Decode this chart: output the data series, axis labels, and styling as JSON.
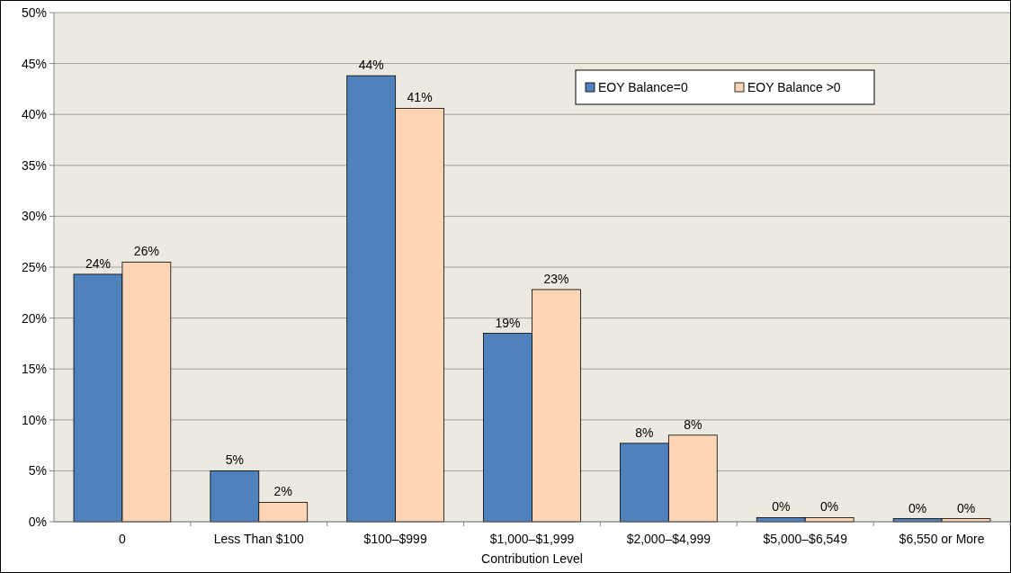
{
  "chart_data": {
    "type": "bar",
    "xlabel": "Contribution Level",
    "categories": [
      "0",
      "Less Than $100",
      "$100–$999",
      "$1,000–$1,999",
      "$2,000–$4,999",
      "$5,000–$6,549",
      "$6,550 or More"
    ],
    "series": [
      {
        "name": "EOY Balance=0",
        "color": "#4f81bd",
        "values": [
          24.3,
          5.0,
          43.8,
          18.5,
          7.7,
          0.4,
          0.3
        ],
        "value_labels": [
          "24%",
          "5%",
          "44%",
          "19%",
          "8%",
          "0%",
          "0%"
        ]
      },
      {
        "name": "EOY Balance >0",
        "color": "#fbd5b5",
        "values": [
          25.5,
          1.9,
          40.6,
          22.8,
          8.5,
          0.4,
          0.3
        ],
        "value_labels": [
          "26%",
          "2%",
          "41%",
          "23%",
          "8%",
          "0%",
          "0%"
        ]
      }
    ],
    "ylim": [
      0,
      50
    ],
    "yticks": [
      {
        "value": 0,
        "label": "0%"
      },
      {
        "value": 5,
        "label": "5%"
      },
      {
        "value": 10,
        "label": "10%"
      },
      {
        "value": 15,
        "label": "15%"
      },
      {
        "value": 20,
        "label": "20%"
      },
      {
        "value": 25,
        "label": "25%"
      },
      {
        "value": 30,
        "label": "30%"
      },
      {
        "value": 35,
        "label": "35%"
      },
      {
        "value": 40,
        "label": "40%"
      },
      {
        "value": 45,
        "label": "45%"
      },
      {
        "value": 50,
        "label": "50%"
      }
    ],
    "grid": "y",
    "legend": "top right"
  }
}
